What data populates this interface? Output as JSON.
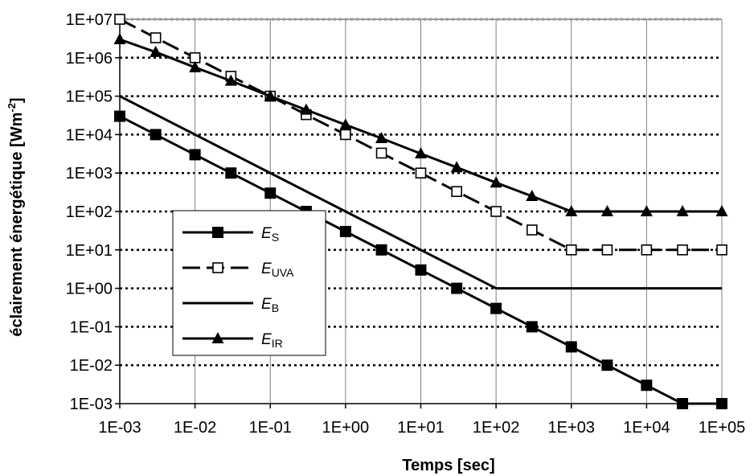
{
  "chart_data": {
    "type": "line",
    "title": "",
    "xlabel": "Temps [sec]",
    "ylabel": {
      "text": "éclairement énergétique [Wm",
      "sup": "-2",
      "close": "]"
    },
    "xscale": "log",
    "yscale": "log",
    "xlim": [
      0.001,
      100000
    ],
    "ylim": [
      0.001,
      10000000
    ],
    "grid": "horizontal-dotted",
    "legend_position": "lower-left",
    "x_tick_labels": [
      "1E-03",
      "1E-02",
      "1E-01",
      "1E+00",
      "1E+01",
      "1E+02",
      "1E+03",
      "1E+04",
      "1E+05"
    ],
    "y_tick_labels": [
      "1E-03",
      "1E-02",
      "1E-01",
      "1E+00",
      "1E+01",
      "1E+02",
      "1E+03",
      "1E+04",
      "1E+05",
      "1E+06",
      "1E+07"
    ],
    "series": [
      {
        "name": "E",
        "subscript": "S",
        "marker": "filled-square",
        "line": "solid",
        "color": "#000000",
        "x": [
          0.001,
          0.003,
          0.01,
          0.03,
          0.1,
          0.3,
          1,
          3,
          10,
          30,
          100,
          300,
          1000,
          3000,
          10000,
          30000,
          100000
        ],
        "y": [
          30000,
          10000,
          3000,
          1000,
          300,
          100,
          30,
          10,
          3,
          1,
          0.3,
          0.1,
          0.03,
          0.01,
          0.003,
          0.001,
          0.001
        ]
      },
      {
        "name": "E",
        "subscript": "UVA",
        "marker": "open-square",
        "line": "dashed",
        "color": "#000000",
        "x": [
          0.001,
          0.003,
          0.01,
          0.03,
          0.1,
          0.3,
          1,
          3,
          10,
          30,
          100,
          300,
          1000,
          3000,
          10000,
          30000,
          100000
        ],
        "y": [
          10000000,
          3300000,
          1000000,
          330000,
          100000,
          33000,
          10000,
          3300,
          1000,
          330,
          100,
          33,
          10,
          10,
          10,
          10,
          10
        ]
      },
      {
        "name": "E",
        "subscript": "B",
        "marker": "none",
        "line": "solid",
        "color": "#000000",
        "x": [
          0.001,
          100,
          100000
        ],
        "y": [
          100000,
          1,
          1
        ]
      },
      {
        "name": "E",
        "subscript": "IR",
        "marker": "filled-triangle",
        "line": "solid",
        "color": "#000000",
        "x": [
          0.001,
          0.003,
          0.01,
          0.03,
          0.1,
          0.3,
          1,
          3,
          10,
          30,
          100,
          300,
          1000,
          3000,
          10000,
          30000,
          100000
        ],
        "y": [
          3000000,
          1400000,
          560000,
          250000,
          100000,
          44000,
          18000,
          8000,
          3200,
          1400,
          560,
          250,
          100,
          100,
          100,
          100,
          100
        ]
      }
    ]
  }
}
